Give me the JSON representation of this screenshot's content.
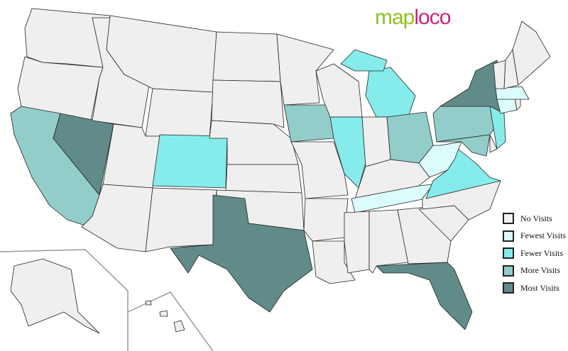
{
  "logo": {
    "part1": "map",
    "part2": "loco"
  },
  "legend": [
    {
      "key": "none",
      "label": "No Visits",
      "color": "#efefef"
    },
    {
      "key": "fewest",
      "label": "Fewest Visits",
      "color": "#dcfcfc"
    },
    {
      "key": "fewer",
      "label": "Fewer Visits",
      "color": "#85eceb"
    },
    {
      "key": "more",
      "label": "More Visits",
      "color": "#93cdca"
    },
    {
      "key": "most",
      "label": "Most Visits",
      "color": "#608b89"
    }
  ],
  "visits": {
    "NV": "most",
    "TX": "most",
    "FL": "most",
    "NY": "most",
    "CA": "more",
    "IA": "more",
    "OH": "more",
    "PA": "more",
    "MD": "more",
    "CO": "fewer",
    "IL": "fewer",
    "MI": "fewer",
    "VA": "fewer",
    "NJ": "fewer",
    "WV": "fewest",
    "TN": "fewest",
    "CT": "fewest",
    "MA": "fewest"
  }
}
